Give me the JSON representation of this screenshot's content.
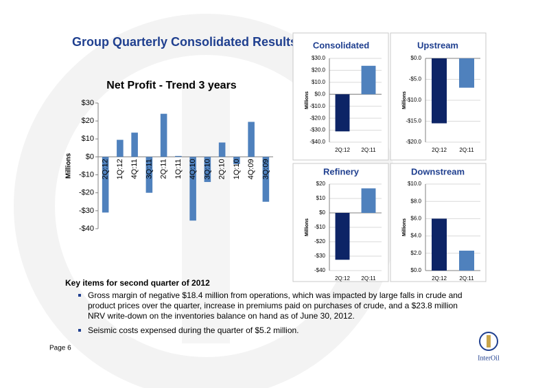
{
  "title": "Group Quarterly Consolidated Results",
  "chart_data": [
    {
      "type": "bar",
      "title": "Net Profit - Trend 3 years",
      "y_label": "Millions",
      "categories": [
        "2Q:12",
        "1Q:12",
        "4Q:11",
        "3Q:11",
        "2Q:11",
        "1Q:11",
        "4Q:10",
        "3Q:10",
        "2Q:10",
        "1Q:10",
        "4Q:09",
        "3Q:09"
      ],
      "values": [
        -31,
        9.5,
        13.5,
        -20,
        24,
        0.5,
        -35.5,
        -14,
        8,
        -4,
        19.5,
        -25
      ],
      "color": "#4f81bd",
      "grid": false,
      "ylim": [
        -40,
        30
      ],
      "yticks": [
        {
          "value": 30,
          "label": "$30"
        },
        {
          "value": 20,
          "label": "$20"
        },
        {
          "value": 10,
          "label": "$10"
        },
        {
          "value": 0,
          "label": "$0"
        },
        {
          "value": -10,
          "label": "-$10"
        },
        {
          "value": -20,
          "label": "-$20"
        },
        {
          "value": -30,
          "label": "-$30"
        },
        {
          "value": -40,
          "label": "-$40"
        }
      ]
    },
    {
      "type": "bar",
      "title": "Consolidated",
      "y_label": "Millions",
      "categories": [
        "2Q:12",
        "2Q:11"
      ],
      "values": [
        -31,
        23.8
      ],
      "colors": [
        "#0d2466",
        "#4f81bd"
      ],
      "grid": true,
      "ylim": [
        -40,
        30
      ],
      "yticks": [
        {
          "value": 30,
          "label": "$30.0"
        },
        {
          "value": 20,
          "label": "$20.0"
        },
        {
          "value": 10,
          "label": "$10.0"
        },
        {
          "value": 0,
          "label": "$0.0"
        },
        {
          "value": -10,
          "label": "-$10.0"
        },
        {
          "value": -20,
          "label": "-$20.0"
        },
        {
          "value": -30,
          "label": "-$30.0"
        },
        {
          "value": -40,
          "label": "-$40.0"
        }
      ]
    },
    {
      "type": "bar",
      "title": "Upstream",
      "y_label": "Millions",
      "categories": [
        "2Q:12",
        "2Q:11"
      ],
      "values": [
        -15.5,
        -7
      ],
      "colors": [
        "#0d2466",
        "#4f81bd"
      ],
      "grid": true,
      "ylim": [
        -20,
        0
      ],
      "yticks": [
        {
          "value": 0,
          "label": "$0.0"
        },
        {
          "value": -5,
          "label": "-$5.0"
        },
        {
          "value": -10,
          "label": "-$10.0"
        },
        {
          "value": -15,
          "label": "-$15.0"
        },
        {
          "value": -20,
          "label": "-$20.0"
        }
      ]
    },
    {
      "type": "bar",
      "title": "Refinery",
      "y_label": "Millions",
      "categories": [
        "2Q:12",
        "2Q:11"
      ],
      "values": [
        -32.5,
        17
      ],
      "colors": [
        "#0d2466",
        "#4f81bd"
      ],
      "grid": true,
      "ylim": [
        -40,
        20
      ],
      "yticks": [
        {
          "value": 20,
          "label": "$20"
        },
        {
          "value": 10,
          "label": "$10"
        },
        {
          "value": 0,
          "label": "$0"
        },
        {
          "value": -10,
          "label": "-$10"
        },
        {
          "value": -20,
          "label": "-$20"
        },
        {
          "value": -30,
          "label": "-$30"
        },
        {
          "value": -40,
          "label": "-$40"
        }
      ]
    },
    {
      "type": "bar",
      "title": "Downstream",
      "y_label": "Millions",
      "categories": [
        "2Q:12",
        "2Q:11"
      ],
      "values": [
        6,
        2.3
      ],
      "colors": [
        "#0d2466",
        "#4f81bd"
      ],
      "grid": true,
      "ylim": [
        0,
        10
      ],
      "yticks": [
        {
          "value": 10,
          "label": "$10.0"
        },
        {
          "value": 8,
          "label": "$8.0"
        },
        {
          "value": 6,
          "label": "$6.0"
        },
        {
          "value": 4,
          "label": "$4.0"
        },
        {
          "value": 2,
          "label": "$2.0"
        },
        {
          "value": 0,
          "label": "$0.0"
        }
      ]
    }
  ],
  "key_items": {
    "heading": "Key items for second quarter of 2012",
    "bullets": [
      "Gross margin of negative $18.4 million from operations, which was impacted by large falls in crude and product prices over the quarter, increase in premiums paid on purchases of crude, and a $23.8 million NRV write-down on the inventories balance on hand as of June 30, 2012.",
      "Seismic costs expensed during the quarter of $5.2 million."
    ]
  },
  "page": "Page 6",
  "logo": "InterOil"
}
